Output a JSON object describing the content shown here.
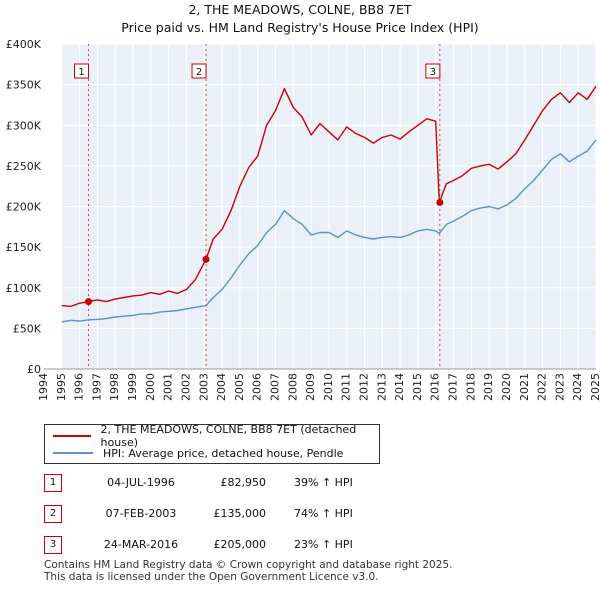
{
  "chart_data": {
    "type": "line",
    "title": "2, THE MEADOWS, COLNE, BB8 7ET",
    "subtitle": "Price paid vs. HM Land Registry's House Price Index (HPI)",
    "xlim": [
      1994,
      2025
    ],
    "ylim": [
      0,
      400000
    ],
    "x_ticks": [
      1994,
      1995,
      1996,
      1997,
      1998,
      1999,
      2000,
      2001,
      2002,
      2003,
      2004,
      2005,
      2006,
      2007,
      2008,
      2009,
      2010,
      2011,
      2012,
      2013,
      2014,
      2015,
      2016,
      2017,
      2018,
      2019,
      2020,
      2021,
      2022,
      2023,
      2024,
      2025
    ],
    "y_ticks": [
      {
        "value": 0,
        "label": "£0"
      },
      {
        "value": 50000,
        "label": "£50K"
      },
      {
        "value": 100000,
        "label": "£100K"
      },
      {
        "value": 150000,
        "label": "£150K"
      },
      {
        "value": 200000,
        "label": "£200K"
      },
      {
        "value": 250000,
        "label": "£250K"
      },
      {
        "value": 300000,
        "label": "£300K"
      },
      {
        "value": 350000,
        "label": "£350K"
      },
      {
        "value": 400000,
        "label": "£400K"
      }
    ],
    "data_start": 1995.0,
    "data_end": 2025.0,
    "series": [
      {
        "name": "2, THE MEADOWS, COLNE, BB8 7ET (detached house)",
        "color": "#cc0000",
        "points": [
          [
            1995.0,
            78000
          ],
          [
            1995.5,
            77000
          ],
          [
            1996.0,
            81000
          ],
          [
            1996.5,
            82950
          ],
          [
            1997.0,
            85000
          ],
          [
            1997.5,
            83000
          ],
          [
            1998.0,
            86000
          ],
          [
            1998.5,
            88000
          ],
          [
            1999.0,
            90000
          ],
          [
            1999.5,
            91000
          ],
          [
            2000.0,
            94000
          ],
          [
            2000.5,
            92000
          ],
          [
            2001.0,
            96000
          ],
          [
            2001.5,
            93000
          ],
          [
            2002.0,
            98000
          ],
          [
            2002.5,
            110000
          ],
          [
            2003.1,
            135000
          ],
          [
            2003.5,
            160000
          ],
          [
            2004.0,
            172000
          ],
          [
            2004.5,
            195000
          ],
          [
            2005.0,
            225000
          ],
          [
            2005.5,
            248000
          ],
          [
            2006.0,
            262000
          ],
          [
            2006.5,
            300000
          ],
          [
            2007.0,
            318000
          ],
          [
            2007.5,
            345000
          ],
          [
            2008.0,
            322000
          ],
          [
            2008.5,
            310000
          ],
          [
            2009.0,
            288000
          ],
          [
            2009.5,
            302000
          ],
          [
            2010.0,
            292000
          ],
          [
            2010.5,
            282000
          ],
          [
            2011.0,
            298000
          ],
          [
            2011.5,
            290000
          ],
          [
            2012.0,
            285000
          ],
          [
            2012.5,
            278000
          ],
          [
            2013.0,
            285000
          ],
          [
            2013.5,
            288000
          ],
          [
            2014.0,
            283000
          ],
          [
            2014.5,
            292000
          ],
          [
            2015.0,
            300000
          ],
          [
            2015.5,
            308000
          ],
          [
            2016.0,
            305000
          ],
          [
            2016.2,
            205000
          ],
          [
            2016.6,
            228000
          ],
          [
            2017.0,
            232000
          ],
          [
            2017.5,
            238000
          ],
          [
            2018.0,
            247000
          ],
          [
            2018.5,
            250000
          ],
          [
            2019.0,
            252000
          ],
          [
            2019.5,
            246000
          ],
          [
            2020.0,
            255000
          ],
          [
            2020.5,
            265000
          ],
          [
            2021.0,
            282000
          ],
          [
            2021.5,
            300000
          ],
          [
            2022.0,
            318000
          ],
          [
            2022.5,
            332000
          ],
          [
            2023.0,
            340000
          ],
          [
            2023.5,
            328000
          ],
          [
            2024.0,
            340000
          ],
          [
            2024.5,
            332000
          ],
          [
            2025.0,
            348000
          ]
        ]
      },
      {
        "name": "HPI: Average price, detached house, Pendle",
        "color": "#5b8fcf",
        "points": [
          [
            1995.0,
            58000
          ],
          [
            1995.5,
            60000
          ],
          [
            1996.0,
            59000
          ],
          [
            1996.5,
            60500
          ],
          [
            1997.0,
            61000
          ],
          [
            1997.5,
            62000
          ],
          [
            1998.0,
            64000
          ],
          [
            1998.5,
            65000
          ],
          [
            1999.0,
            66000
          ],
          [
            1999.5,
            68000
          ],
          [
            2000.0,
            68000
          ],
          [
            2000.5,
            70000
          ],
          [
            2001.0,
            71000
          ],
          [
            2001.5,
            72000
          ],
          [
            2002.0,
            74000
          ],
          [
            2002.5,
            76000
          ],
          [
            2003.1,
            78000
          ],
          [
            2003.5,
            88000
          ],
          [
            2004.0,
            98000
          ],
          [
            2004.5,
            112000
          ],
          [
            2005.0,
            128000
          ],
          [
            2005.5,
            142000
          ],
          [
            2006.0,
            152000
          ],
          [
            2006.5,
            168000
          ],
          [
            2007.0,
            178000
          ],
          [
            2007.5,
            195000
          ],
          [
            2008.0,
            185000
          ],
          [
            2008.5,
            178000
          ],
          [
            2009.0,
            165000
          ],
          [
            2009.5,
            168000
          ],
          [
            2010.0,
            168000
          ],
          [
            2010.5,
            162000
          ],
          [
            2011.0,
            170000
          ],
          [
            2011.5,
            165000
          ],
          [
            2012.0,
            162000
          ],
          [
            2012.5,
            160000
          ],
          [
            2013.0,
            162000
          ],
          [
            2013.5,
            163000
          ],
          [
            2014.0,
            162000
          ],
          [
            2014.5,
            165000
          ],
          [
            2015.0,
            170000
          ],
          [
            2015.5,
            172000
          ],
          [
            2016.0,
            170000
          ],
          [
            2016.2,
            167000
          ],
          [
            2016.6,
            178000
          ],
          [
            2017.0,
            182000
          ],
          [
            2017.5,
            188000
          ],
          [
            2018.0,
            195000
          ],
          [
            2018.5,
            198000
          ],
          [
            2019.0,
            200000
          ],
          [
            2019.5,
            197000
          ],
          [
            2020.0,
            202000
          ],
          [
            2020.5,
            210000
          ],
          [
            2021.0,
            222000
          ],
          [
            2021.5,
            232000
          ],
          [
            2022.0,
            245000
          ],
          [
            2022.5,
            258000
          ],
          [
            2023.0,
            265000
          ],
          [
            2023.5,
            255000
          ],
          [
            2024.0,
            262000
          ],
          [
            2024.5,
            268000
          ],
          [
            2025.0,
            282000
          ]
        ]
      }
    ],
    "sales": [
      {
        "label": "1",
        "x": 1996.5,
        "value": 82950
      },
      {
        "label": "2",
        "x": 2003.1,
        "value": 135000
      },
      {
        "label": "3",
        "x": 2016.23,
        "value": 205000
      }
    ]
  },
  "legend": {
    "property": "2, THE MEADOWS, COLNE, BB8 7ET (detached house)",
    "hpi": "HPI: Average price, detached house, Pendle"
  },
  "sales_table": [
    {
      "num": "1",
      "date": "04-JUL-1996",
      "price": "£82,950",
      "hpi": "39% ↑ HPI"
    },
    {
      "num": "2",
      "date": "07-FEB-2003",
      "price": "£135,000",
      "hpi": "74% ↑ HPI"
    },
    {
      "num": "3",
      "date": "24-MAR-2016",
      "price": "£205,000",
      "hpi": "23% ↑ HPI"
    }
  ],
  "footer": {
    "line1": "Contains HM Land Registry data © Crown copyright and database right 2025.",
    "line2": "This data is licensed under the Open Government Licence v3.0."
  }
}
